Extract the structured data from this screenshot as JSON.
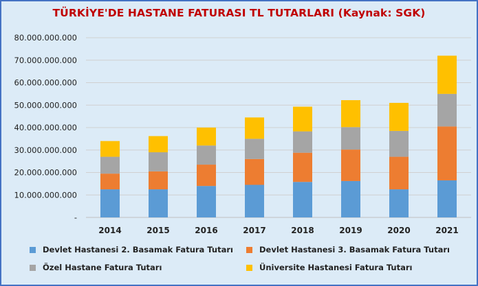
{
  "chart_data": {
    "type": "bar",
    "stacked": true,
    "title": "TÜRKİYE'DE HASTANE FATURASI TL TUTARLARI (Kaynak: SGK)",
    "categories": [
      "2014",
      "2015",
      "2016",
      "2017",
      "2018",
      "2019",
      "2020",
      "2021"
    ],
    "ylim": [
      0,
      80000000000
    ],
    "yticks": [
      "-",
      "10.000.000.000",
      "20.000.000.000",
      "30.000.000.000",
      "40.000.000.000",
      "50.000.000.000",
      "60.000.000.000",
      "70.000.000.000",
      "80.000.000.000"
    ],
    "grid": true,
    "legend_position": "bottom",
    "series": [
      {
        "name": "Devlet Hastanesi 2. Basamak Fatura Tutarı",
        "color": "#5b9bd5",
        "values": [
          12500000000,
          12500000000,
          14000000000,
          14500000000,
          15800000000,
          16200000000,
          12500000000,
          16500000000
        ]
      },
      {
        "name": "Devlet Hastanesi 3. Basamak Fatura Tutarı",
        "color": "#ed7d31",
        "values": [
          7000000000,
          8000000000,
          9500000000,
          11500000000,
          13000000000,
          14000000000,
          14500000000,
          24000000000
        ]
      },
      {
        "name": "Özel Hastane Fatura Tutarı",
        "color": "#a5a5a5",
        "values": [
          7500000000,
          8500000000,
          8500000000,
          9000000000,
          9500000000,
          10000000000,
          11500000000,
          14500000000
        ]
      },
      {
        "name": "Üniversite Hastanesi Fatura Tutarı",
        "color": "#ffc000",
        "values": [
          7000000000,
          7200000000,
          8000000000,
          9500000000,
          11000000000,
          12000000000,
          12500000000,
          17000000000
        ]
      }
    ]
  }
}
